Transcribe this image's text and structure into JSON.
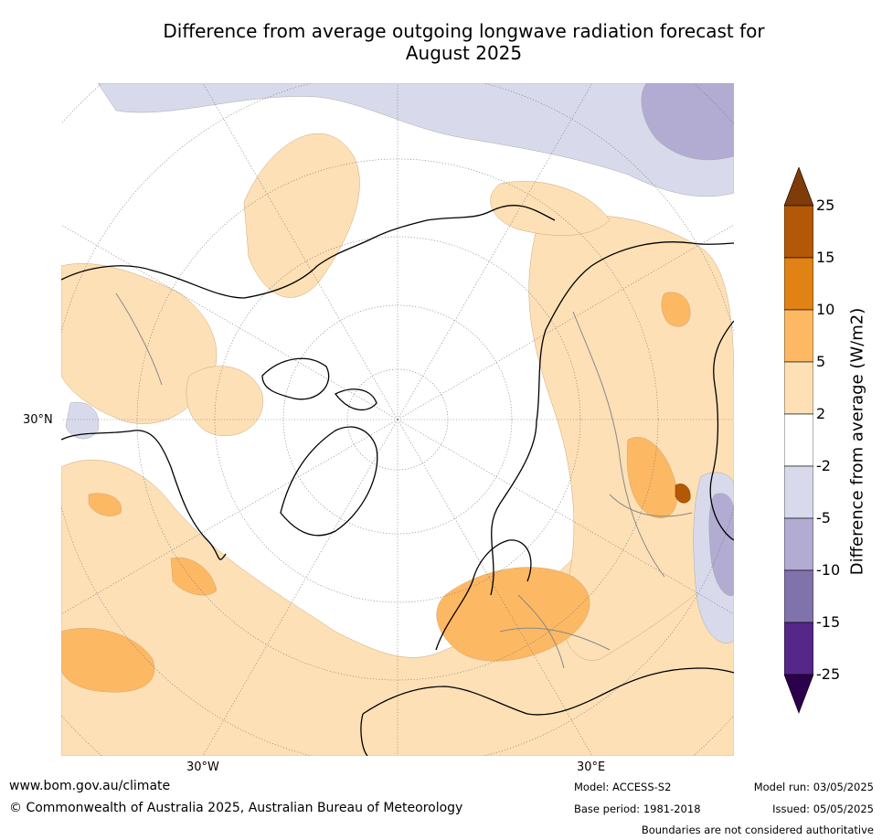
{
  "title_line1": "Difference from average outgoing longwave radiation forecast for",
  "title_line2": "August 2025",
  "map": {
    "lat_label_left": "30°N",
    "lon_label_left": "30°W",
    "lon_label_right": "30°E",
    "projection": "polar-stereographic-north"
  },
  "colorbar": {
    "title": "Difference from average (W/m2)",
    "ticks": [
      "25",
      "15",
      "10",
      "5",
      "2",
      "-2",
      "-5",
      "-10",
      "-15",
      "-25"
    ],
    "colors": {
      "gt25": "#7f3b08",
      "15_25": "#b35806",
      "10_15": "#e08214",
      "5_10": "#fdb863",
      "2_5": "#fee0b6",
      "neutral": "#ffffff",
      "m5_m2": "#d8daeb",
      "m10_m5": "#b2abd2",
      "m15_m10": "#8073ac",
      "m25_m15": "#542788",
      "lt_m25": "#2d004b"
    }
  },
  "footer": {
    "url": "www.bom.gov.au/climate",
    "copyright": "© Commonwealth of Australia 2025, Australian Bureau of Meteorology",
    "model": "Model: ACCESS-S2",
    "base_period": "Base period: 1981-2018",
    "model_run": "Model run: 03/05/2025",
    "issued": "Issued: 05/05/2025",
    "disclaimer": "Boundaries are not considered authoritative"
  }
}
